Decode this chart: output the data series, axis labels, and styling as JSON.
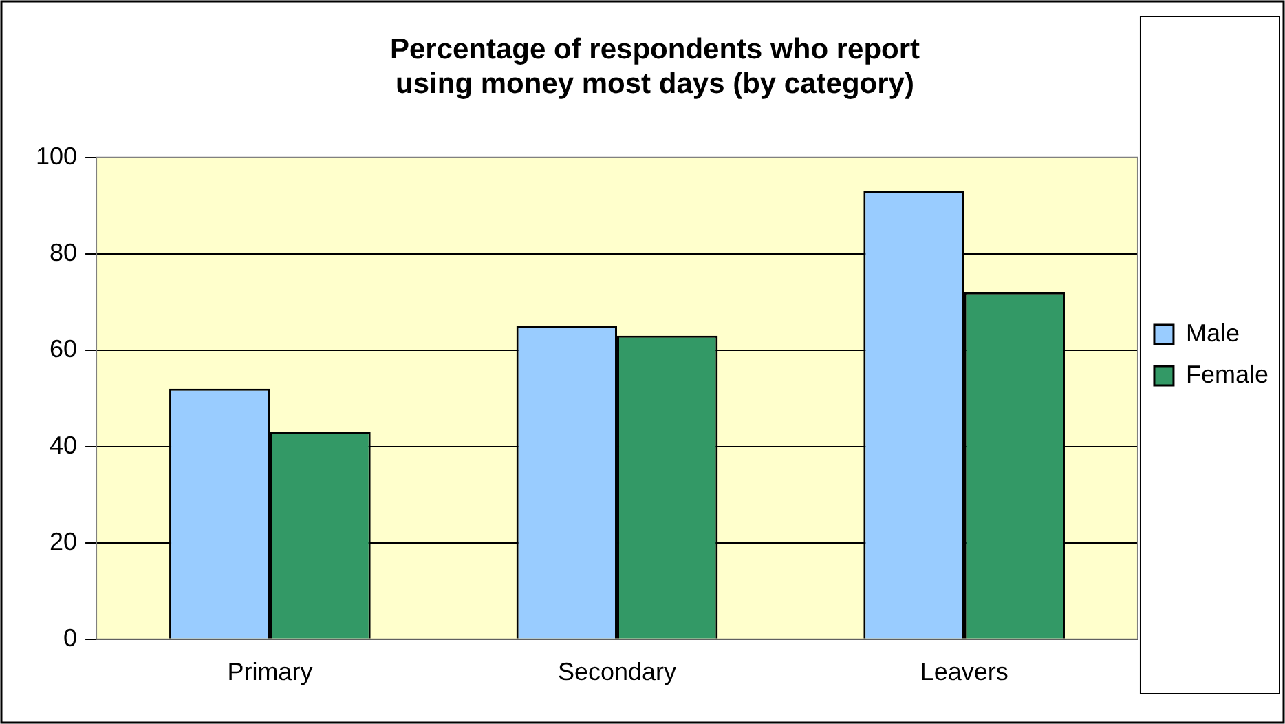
{
  "chart_data": {
    "type": "bar",
    "title": "Percentage of respondents who report using money most days (by category)",
    "categories": [
      "Primary",
      "Secondary",
      "Leavers"
    ],
    "series": [
      {
        "name": "Male",
        "color": "#99ccff",
        "values": [
          52,
          65,
          93
        ]
      },
      {
        "name": "Female",
        "color": "#339966",
        "values": [
          43,
          63,
          72
        ]
      }
    ],
    "ylim": [
      0,
      100
    ],
    "yticks": [
      0,
      20,
      40,
      60,
      80,
      100
    ],
    "grid": "y",
    "legend": "right"
  }
}
